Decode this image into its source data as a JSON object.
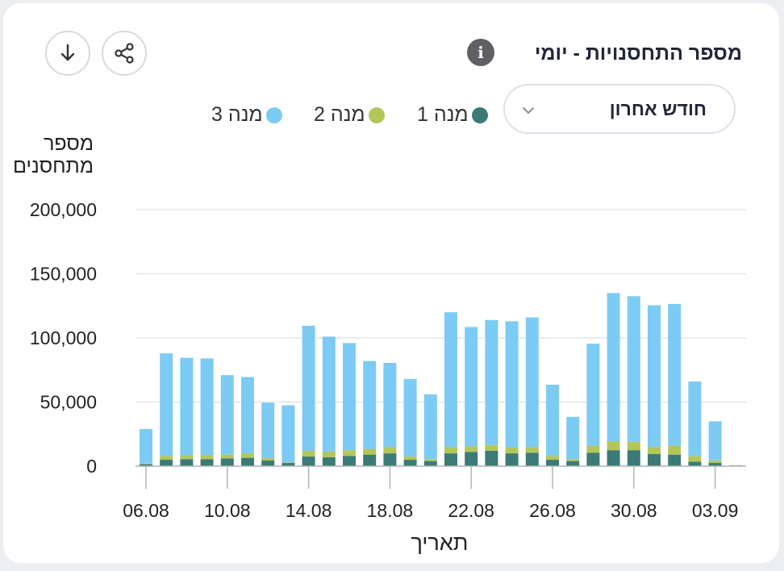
{
  "header": {
    "title": "מספר התחסנויות - יומי",
    "info_icon": "info-icon",
    "info_glyph": "i",
    "share_icon": "share-icon",
    "download_icon": "download-icon"
  },
  "filter": {
    "selected": "חודש אחרון",
    "icon": "chevron-down-icon"
  },
  "colors": {
    "dose1": "#3c7a77",
    "dose2": "#b3c65a",
    "dose3": "#7ccbf5",
    "grid": "#e3e5ea",
    "axis": "#b0b4bc"
  },
  "chart_data": {
    "type": "bar",
    "stacked": true,
    "ylabel_line1": "מספר",
    "ylabel_line2": "מתחסנים",
    "xlabel": "תאריך",
    "ylim": [
      0,
      200000
    ],
    "yticks": [
      0,
      50000,
      100000,
      150000,
      200000
    ],
    "ytick_labels": [
      "0",
      "50,000",
      "100,000",
      "150,000",
      "200,000"
    ],
    "xtick_labels": [
      "06.08",
      "10.08",
      "14.08",
      "18.08",
      "22.08",
      "26.08",
      "30.08",
      "03.09"
    ],
    "xtick_indices": [
      0,
      4,
      8,
      12,
      16,
      20,
      24,
      28
    ],
    "grid": true,
    "legend_position": "top",
    "categories": [
      "06.08",
      "07.08",
      "08.08",
      "09.08",
      "10.08",
      "11.08",
      "12.08",
      "13.08",
      "14.08",
      "15.08",
      "16.08",
      "17.08",
      "18.08",
      "19.08",
      "20.08",
      "21.08",
      "22.08",
      "23.08",
      "24.08",
      "25.08",
      "26.08",
      "27.08",
      "28.08",
      "29.08",
      "30.08",
      "31.08",
      "01.09",
      "02.09",
      "03.09",
      "04.09"
    ],
    "series": [
      {
        "name": "מנה 1",
        "color": "#3c7a77",
        "values": [
          1500,
          5000,
          5500,
          5500,
          6000,
          6500,
          4500,
          2500,
          7500,
          7000,
          8000,
          9000,
          10000,
          5000,
          4000,
          10000,
          11000,
          12000,
          10000,
          10500,
          5000,
          4000,
          10500,
          12500,
          12500,
          9500,
          9000,
          3500,
          2500,
          500
        ]
      },
      {
        "name": "מנה 2",
        "color": "#b3c65a",
        "values": [
          500,
          3000,
          3000,
          3000,
          3000,
          3500,
          2000,
          500,
          4500,
          4500,
          4500,
          4500,
          5000,
          2500,
          1500,
          5000,
          4500,
          4500,
          4500,
          4500,
          3000,
          1500,
          5500,
          7000,
          6500,
          5500,
          7000,
          4500,
          2000,
          300
        ]
      },
      {
        "name": "מנה 3",
        "color": "#7ccbf5",
        "values": [
          27000,
          80000,
          76000,
          75500,
          62000,
          59500,
          43000,
          44500,
          97500,
          89500,
          83500,
          68500,
          65500,
          60500,
          50500,
          105000,
          93000,
          97500,
          98500,
          101000,
          55500,
          33000,
          79500,
          115500,
          113500,
          110500,
          110500,
          58000,
          30500,
          0
        ]
      }
    ]
  }
}
